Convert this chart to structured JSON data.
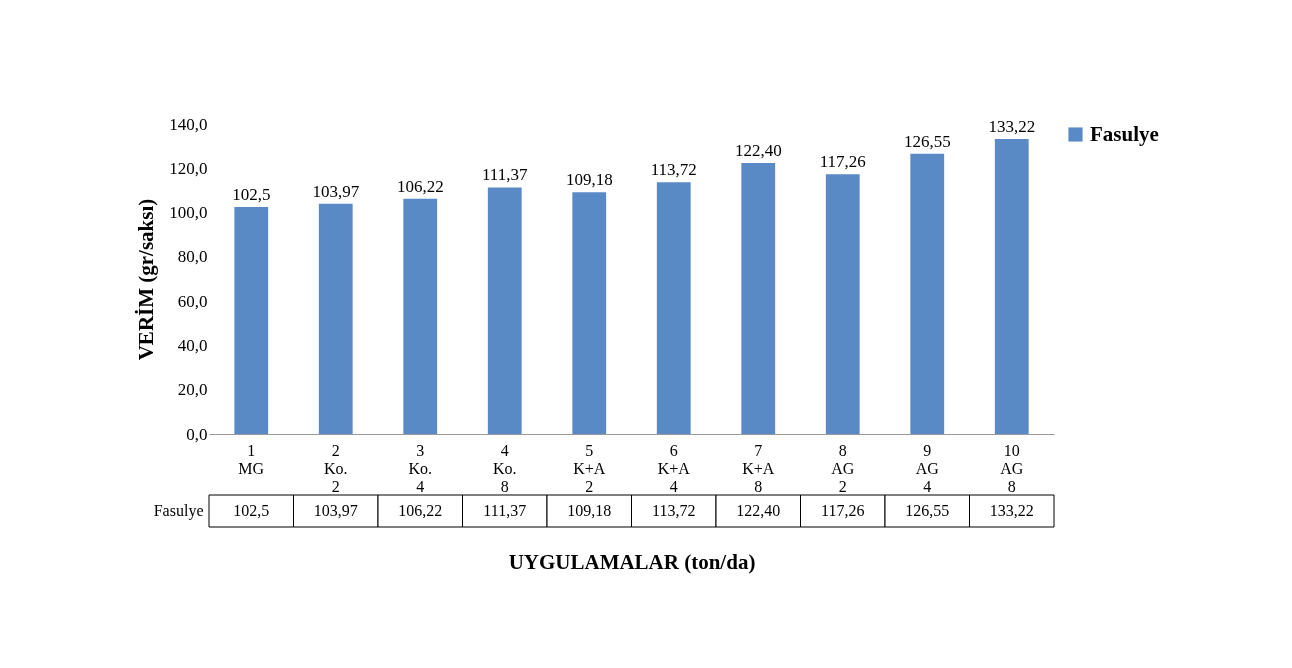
{
  "chart_data": {
    "type": "bar",
    "ylabel": "VERİM (gr/saksı)",
    "xlabel": "UYGULAMALAR (ton/da)",
    "categories": [
      "1\nMG",
      "2\nKo.\n2",
      "3\nKo.\n4",
      "4\nKo.\n8",
      "5\nK+A\n2",
      "6\nK+A\n4",
      "7\nK+A\n8",
      "8\nAG\n2",
      "9\nAG\n4",
      "10\nAG\n8"
    ],
    "series": [
      {
        "name": "Fasulye",
        "color": "#5a8ac6",
        "values": [
          102.5,
          103.97,
          106.22,
          111.37,
          109.18,
          113.72,
          122.4,
          117.26,
          126.55,
          133.22
        ],
        "value_labels": [
          "102,5",
          "103,97",
          "106,22",
          "111,37",
          "109,18",
          "113,72",
          "122,40",
          "117,26",
          "126,55",
          "133,22"
        ]
      }
    ],
    "ylim": [
      0,
      140
    ],
    "yticks": [
      {
        "value": 0,
        "label": "0,0"
      },
      {
        "value": 20,
        "label": "20,0"
      },
      {
        "value": 40,
        "label": "40,0"
      },
      {
        "value": 60,
        "label": "60,0"
      },
      {
        "value": 80,
        "label": "80,0"
      },
      {
        "value": 100,
        "label": "100,0"
      },
      {
        "value": 120,
        "label": "120,0"
      },
      {
        "value": 140,
        "label": "140,0"
      }
    ],
    "data_labels": true,
    "grid": false,
    "legend": "right"
  }
}
